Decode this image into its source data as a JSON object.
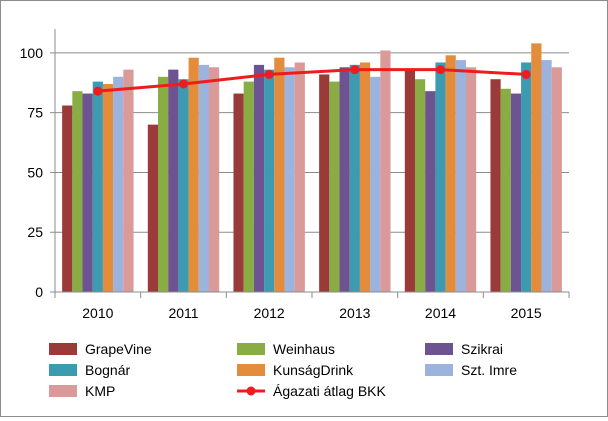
{
  "chart_data": {
    "type": "bar",
    "categories": [
      "2010",
      "2011",
      "2012",
      "2013",
      "2014",
      "2015"
    ],
    "ylim": [
      0,
      110
    ],
    "yticks": [
      0,
      25,
      50,
      75,
      100
    ],
    "grid": true,
    "legend_position": "bottom",
    "series": [
      {
        "name": "GrapeVine",
        "color": "#9b3b39",
        "values": [
          78,
          70,
          83,
          91,
          93,
          89
        ]
      },
      {
        "name": "Weinhaus",
        "color": "#8aac45",
        "values": [
          84,
          90,
          88,
          88,
          89,
          85
        ]
      },
      {
        "name": "Szikrai",
        "color": "#6d5392",
        "values": [
          83,
          93,
          95,
          94,
          84,
          83
        ]
      },
      {
        "name": "Bognár",
        "color": "#3d9bb1",
        "values": [
          88,
          89,
          93,
          95,
          96,
          96
        ]
      },
      {
        "name": "KunságDrink",
        "color": "#e38c3b",
        "values": [
          87,
          98,
          98,
          96,
          99,
          104
        ]
      },
      {
        "name": "Szt. Imre",
        "color": "#9bb3dd",
        "values": [
          90,
          95,
          94,
          90,
          97,
          97
        ]
      },
      {
        "name": "KMP",
        "color": "#d99a99",
        "values": [
          93,
          94,
          96,
          101,
          94,
          94
        ]
      }
    ],
    "line_series": {
      "name": "Ágazati átlag BKK",
      "color": "#ee1c1c",
      "values": [
        84,
        87,
        91,
        93,
        93,
        91
      ]
    }
  }
}
